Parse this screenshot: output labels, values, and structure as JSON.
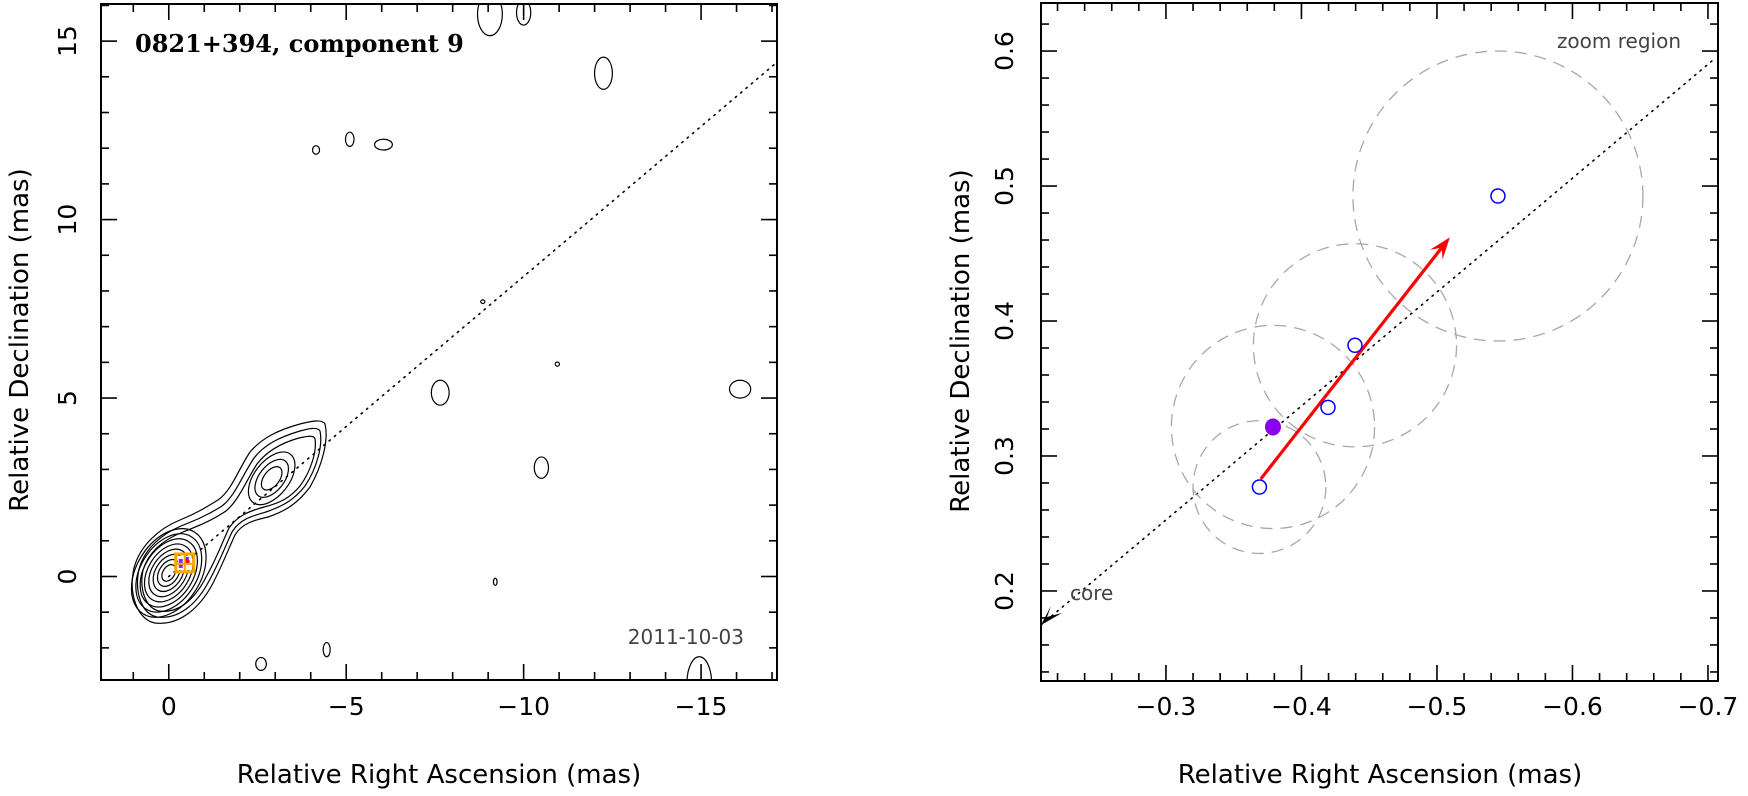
{
  "chart_data": [
    {
      "type": "contour",
      "title": "0821+394, component 9",
      "annotation": "2011-10-03",
      "xlabel": "Relative Right Ascension (mas)",
      "ylabel": "Relative Declination (mas)",
      "xlim": [
        1.91,
        -17.14
      ],
      "ylim": [
        -2.9,
        16.04
      ],
      "xticks": {
        "values": [
          0,
          -5,
          -10,
          -15
        ],
        "labels": [
          "0",
          "−5",
          "−10",
          "−15"
        ]
      },
      "yticks": {
        "values": [
          0,
          5,
          10,
          15
        ],
        "labels": [
          "0",
          "5",
          "10",
          "15"
        ]
      },
      "minor_tick_step": 1,
      "grid": false,
      "sources": [
        {
          "name": "core",
          "ra": 0.0,
          "dec": 0.1,
          "levels": 11,
          "major_mas": 1.75,
          "minor_mas": 1.15,
          "pa_deg": -58
        },
        {
          "name": "jet-knot",
          "ra": -2.9,
          "dec": 2.75,
          "levels": 6,
          "major_mas": 1.5,
          "minor_mas": 0.85,
          "pa_deg": -52
        }
      ],
      "jet_axis": {
        "from": [
          0,
          0
        ],
        "to": [
          -17.14,
          14.41
        ]
      },
      "component_marker": {
        "ra": -0.45,
        "dec": 0.38,
        "color": "#ffa500"
      },
      "noise_contours": [
        {
          "ra": -9.05,
          "dec": 15.75,
          "rx": 0.35,
          "ry": 0.6
        },
        {
          "ra": -10.0,
          "dec": 15.8,
          "rx": 0.2,
          "ry": 0.35
        },
        {
          "ra": -12.25,
          "dec": 14.1,
          "rx": 0.25,
          "ry": 0.45
        },
        {
          "ra": -4.15,
          "dec": 11.95,
          "rx": 0.1,
          "ry": 0.12
        },
        {
          "ra": -5.1,
          "dec": 12.25,
          "rx": 0.12,
          "ry": 0.2
        },
        {
          "ra": -6.05,
          "dec": 12.1,
          "rx": 0.25,
          "ry": 0.15
        },
        {
          "ra": -8.85,
          "dec": 7.7,
          "rx": 0.06,
          "ry": 0.05
        },
        {
          "ra": -7.65,
          "dec": 5.15,
          "rx": 0.25,
          "ry": 0.35
        },
        {
          "ra": -10.95,
          "dec": 5.95,
          "rx": 0.06,
          "ry": 0.06
        },
        {
          "ra": -16.1,
          "dec": 5.25,
          "rx": 0.3,
          "ry": 0.25
        },
        {
          "ra": -10.5,
          "dec": 3.05,
          "rx": 0.2,
          "ry": 0.3
        },
        {
          "ra": -9.2,
          "dec": -0.15,
          "rx": 0.05,
          "ry": 0.1
        },
        {
          "ra": -4.45,
          "dec": -2.05,
          "rx": 0.1,
          "ry": 0.2
        },
        {
          "ra": -2.6,
          "dec": -2.45,
          "rx": 0.15,
          "ry": 0.18
        },
        {
          "ra": -14.95,
          "dec": -3.0,
          "rx": 0.35,
          "ry": 0.75
        }
      ],
      "colors": {
        "contour": "#000000",
        "marker": "#ffa500"
      }
    },
    {
      "type": "scatter",
      "xlabel": "Relative Right Ascension (mas)",
      "ylabel": "Relative Declination (mas)",
      "xlim": [
        -0.2078,
        -0.7074
      ],
      "ylim": [
        0.1333,
        0.6356
      ],
      "xticks": {
        "values": [
          -0.3,
          -0.4,
          -0.5,
          -0.6,
          -0.7
        ],
        "labels": [
          "−0.3",
          "−0.4",
          "−0.5",
          "−0.6",
          "−0.7"
        ]
      },
      "yticks": {
        "values": [
          0.2,
          0.3,
          0.4,
          0.5,
          0.6
        ],
        "labels": [
          "0.2",
          "0.3",
          "0.4",
          "0.5",
          "0.6"
        ]
      },
      "minor_tick_step": 0.02,
      "grid": false,
      "points": [
        {
          "x": -0.369,
          "y": 0.277,
          "style": "open",
          "color": "#0000ff",
          "err_radius": 0.049
        },
        {
          "x": -0.379,
          "y": 0.3215,
          "style": "filled",
          "color": "#8a00ee",
          "err_radius": 0.075
        },
        {
          "x": -0.4196,
          "y": 0.336,
          "style": "open",
          "color": "#0000ff",
          "err_radius": null
        },
        {
          "x": -0.4395,
          "y": 0.382,
          "style": "open",
          "color": "#0000ff",
          "err_radius": 0.075
        },
        {
          "x": -0.545,
          "y": 0.4926,
          "style": "open",
          "color": "#0000ff",
          "err_radius": 0.107
        }
      ],
      "motion_arrow": {
        "from": [
          -0.37,
          0.283
        ],
        "to": [
          -0.5095,
          0.462
        ],
        "color": "#ff0000"
      },
      "jet_axis": {
        "from": [
          -0.2078,
          0.1748
        ],
        "to": [
          -0.7037,
          0.5933
        ]
      },
      "annotations": {
        "zoom_region": "zoom region",
        "core": "core"
      },
      "colors": {
        "error_circle": "#a8a8a8",
        "open_point": "#0000ff",
        "filled_point": "#8a00ee",
        "arrow": "#ff0000"
      }
    }
  ]
}
